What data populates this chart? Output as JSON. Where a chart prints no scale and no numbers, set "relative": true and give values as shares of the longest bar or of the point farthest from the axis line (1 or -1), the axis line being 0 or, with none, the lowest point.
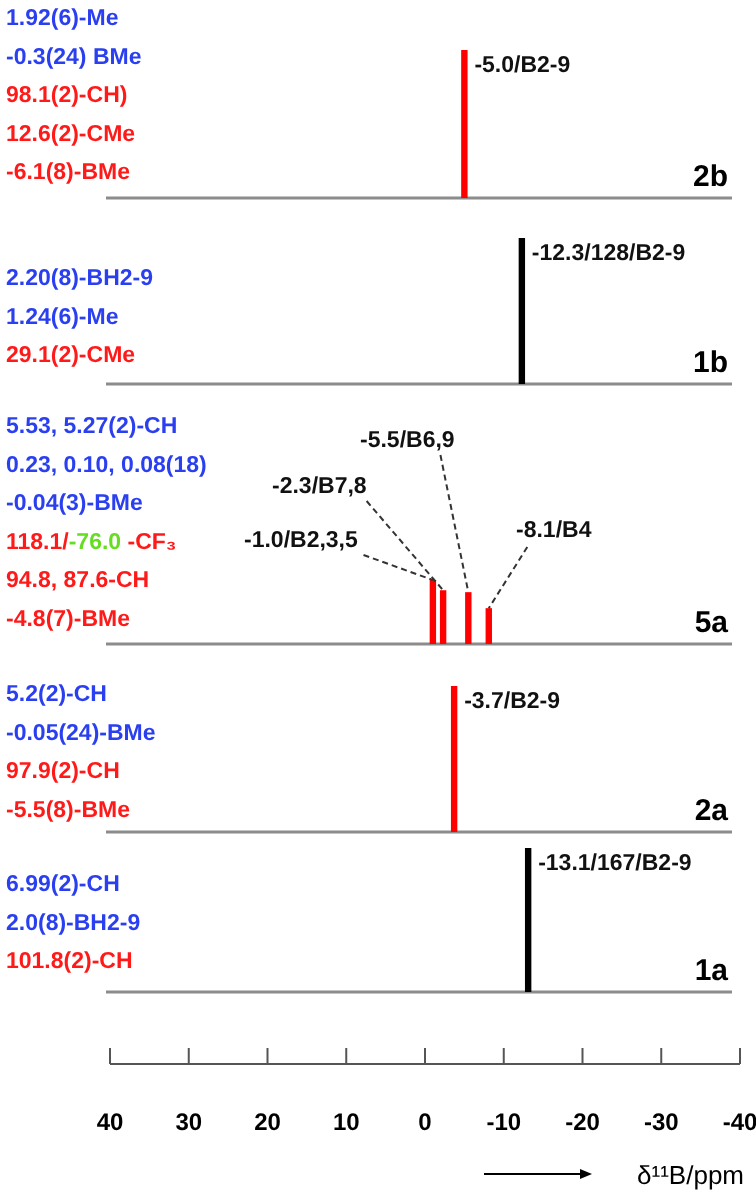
{
  "chart_data": [
    {
      "type": "bar",
      "title": "2b",
      "x": [
        -5.0
      ],
      "values": [
        1
      ],
      "color": "#ff0000",
      "relative": true,
      "xlim": [
        40,
        -40
      ],
      "tick_labels": false,
      "annotations": [
        "1.92(6)-Me",
        "-0.3(24) BMe",
        "98.1(2)-CH)",
        "12.6(2)-CMe",
        "-6.1(8)-BMe",
        {
          "text": "-5.0/B2-9",
          "x": -5.0,
          "y": 1
        }
      ]
    },
    {
      "type": "bar",
      "title": "1b",
      "x": [
        -12.3
      ],
      "values": [
        1
      ],
      "color": "#000000",
      "relative": true,
      "xlim": [
        40,
        -40
      ],
      "tick_labels": false,
      "annotations": [
        "2.20(8)-BH2-9",
        "1.24(6)-Me",
        "29.1(2)-CMe",
        {
          "text": "-12.3/128/B2-9",
          "x": -12.3,
          "y": 1
        }
      ]
    },
    {
      "type": "bar",
      "title": "5a",
      "x": [
        -1.0,
        -2.3,
        -5.5,
        -8.1
      ],
      "values": [
        1,
        0.84,
        0.81,
        0.56
      ],
      "color": "#ff0000",
      "relative": true,
      "xlim": [
        40,
        -40
      ],
      "tick_labels": false,
      "annotations": [
        "5.53, 5.27(2)-CH",
        "0.23, 0.10, 0.08(18)",
        "-0.04(3)-BMe",
        "118.1/-76.0 -CF₃",
        "94.8, 87.6-CH",
        "-4.8(7)-BMe",
        {
          "text": "-1.0/B2,3,5",
          "x": -1.0,
          "y": 1
        },
        {
          "text": "-2.3/B7,8",
          "x": -2.3,
          "y": 0.84
        },
        {
          "text": "-5.5/B6,9",
          "x": -5.5,
          "y": 0.81
        },
        {
          "text": "-8.1/B4",
          "x": -8.1,
          "y": 0.56
        }
      ]
    },
    {
      "type": "bar",
      "title": "2a",
      "x": [
        -3.7
      ],
      "values": [
        1
      ],
      "color": "#ff0000",
      "relative": true,
      "xlim": [
        40,
        -40
      ],
      "tick_labels": false,
      "annotations": [
        "5.2(2)-CH",
        "-0.05(24)-BMe",
        "97.9(2)-CH",
        "-5.5(8)-BMe",
        {
          "text": "-3.7/B2-9",
          "x": -3.7,
          "y": 1
        }
      ]
    },
    {
      "type": "bar",
      "title": "1a",
      "x": [
        -13.1
      ],
      "values": [
        1
      ],
      "color": "#000000",
      "relative": true,
      "xlim": [
        40,
        -40
      ],
      "xticks": [
        40,
        30,
        20,
        10,
        0,
        -10,
        -20,
        -30,
        -40
      ],
      "xlabel": "δ¹¹B/ppm",
      "tick_labels": "x",
      "annotations": [
        "6.99(2)-CH",
        "2.0(8)-BH2-9",
        "101.8(2)-CH",
        {
          "text": "-13.1/167/B2-9",
          "x": -13.1,
          "y": 1
        }
      ]
    }
  ]
}
